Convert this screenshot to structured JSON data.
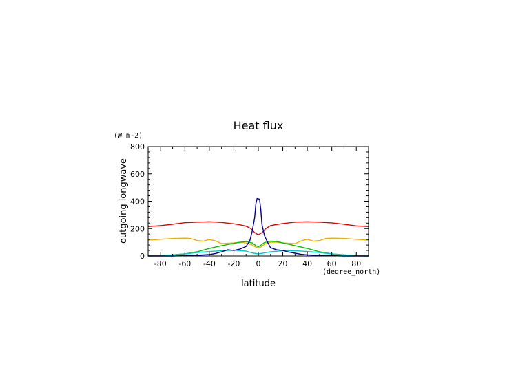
{
  "chart_data": {
    "type": "line",
    "title": "Heat flux",
    "ylabel": "outgoing longwave",
    "yunit": "(W m-2)",
    "xlabel": "latitude",
    "xunit": "(degree_north)",
    "xlim": [
      -90,
      90
    ],
    "ylim": [
      0,
      800
    ],
    "xticks": [
      -80,
      -60,
      -40,
      -20,
      0,
      20,
      40,
      60,
      80
    ],
    "yticks": [
      0,
      200,
      400,
      600,
      800
    ],
    "grid": false,
    "series": [
      {
        "color": "#e00000",
        "x": [
          -90,
          -80,
          -70,
          -60,
          -50,
          -40,
          -30,
          -20,
          -15,
          -10,
          -6,
          -3,
          0,
          3,
          6,
          10,
          15,
          20,
          30,
          40,
          50,
          60,
          70,
          80,
          90
        ],
        "y": [
          215,
          222,
          232,
          243,
          247,
          250,
          245,
          235,
          228,
          218,
          200,
          170,
          155,
          170,
          200,
          222,
          230,
          237,
          247,
          250,
          247,
          242,
          232,
          220,
          215
        ]
      },
      {
        "color": "#f0b000",
        "x": [
          -90,
          -80,
          -70,
          -60,
          -55,
          -50,
          -45,
          -40,
          -35,
          -30,
          -20,
          -15,
          -10,
          -5,
          -2,
          0,
          2,
          5,
          10,
          15,
          20,
          30,
          35,
          40,
          45,
          50,
          55,
          60,
          70,
          80,
          90
        ],
        "y": [
          115,
          122,
          128,
          130,
          128,
          112,
          108,
          120,
          110,
          90,
          95,
          100,
          95,
          80,
          65,
          60,
          65,
          85,
          100,
          100,
          95,
          90,
          110,
          122,
          108,
          112,
          128,
          130,
          128,
          122,
          115
        ]
      },
      {
        "color": "#00c000",
        "x": [
          -90,
          -80,
          -70,
          -60,
          -50,
          -40,
          -30,
          -20,
          -15,
          -10,
          -5,
          -2,
          0,
          2,
          5,
          10,
          15,
          20,
          30,
          40,
          50,
          60,
          70,
          80,
          90
        ],
        "y": [
          0,
          2,
          8,
          15,
          30,
          55,
          75,
          92,
          100,
          105,
          95,
          75,
          68,
          78,
          98,
          108,
          105,
          95,
          75,
          55,
          30,
          15,
          8,
          2,
          0
        ]
      },
      {
        "color": "#00c8c8",
        "x": [
          -90,
          -80,
          -70,
          -60,
          -50,
          -40,
          -30,
          -20,
          -10,
          -5,
          0,
          5,
          10,
          20,
          30,
          40,
          50,
          60,
          70,
          80,
          90
        ],
        "y": [
          0,
          2,
          8,
          15,
          25,
          32,
          38,
          42,
          35,
          22,
          15,
          22,
          30,
          38,
          38,
          32,
          25,
          15,
          8,
          2,
          0
        ]
      },
      {
        "color": "#000090",
        "x": [
          -90,
          -80,
          -70,
          -60,
          -50,
          -40,
          -35,
          -30,
          -25,
          -20,
          -15,
          -10,
          -7,
          -5,
          -3,
          -2,
          -1,
          0,
          1,
          2,
          3,
          5,
          7,
          10,
          15,
          20,
          25,
          30,
          35,
          40,
          50,
          60,
          70,
          80,
          90
        ],
        "y": [
          0,
          0,
          0,
          2,
          5,
          10,
          18,
          30,
          45,
          40,
          50,
          70,
          110,
          180,
          280,
          380,
          420,
          418,
          415,
          340,
          230,
          150,
          110,
          60,
          45,
          40,
          28,
          20,
          12,
          8,
          4,
          2,
          0,
          0,
          0
        ]
      }
    ]
  }
}
